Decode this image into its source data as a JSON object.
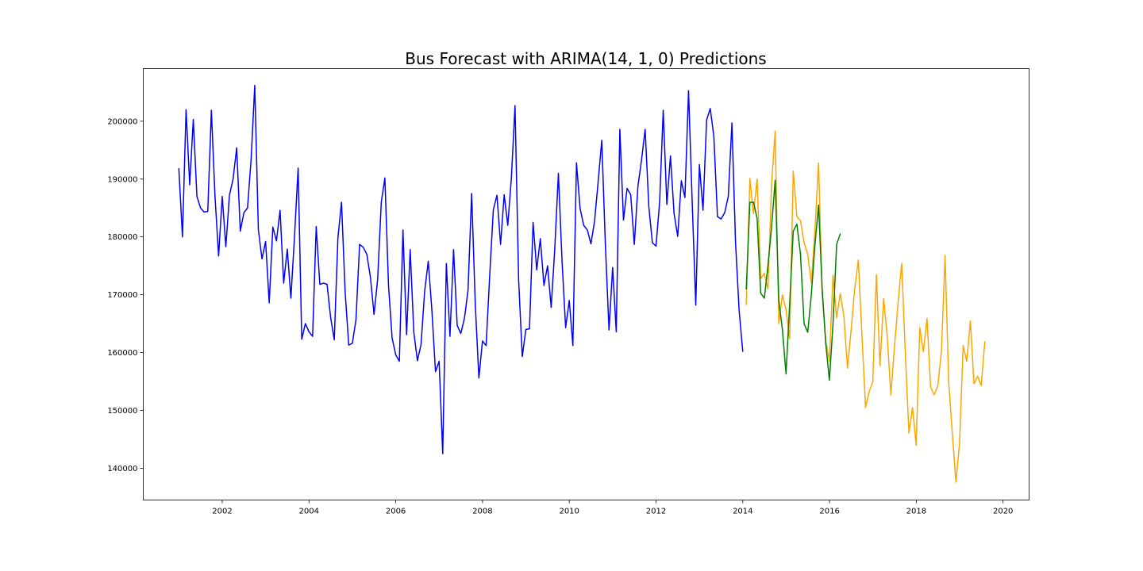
{
  "chart_data": {
    "type": "line",
    "title": "Bus Forecast with ARIMA(14, 1, 0) Predictions",
    "xlabel": "",
    "ylabel": "",
    "xlim": [
      2000.18,
      2020.6
    ],
    "ylim": [
      134500,
      209100
    ],
    "grid": false,
    "legend": "none",
    "x_ticks": [
      2002,
      2004,
      2006,
      2008,
      2010,
      2012,
      2014,
      2016,
      2018,
      2020
    ],
    "x_tick_labels": [
      "2002",
      "2004",
      "2006",
      "2008",
      "2010",
      "2012",
      "2014",
      "2016",
      "2018",
      "2020"
    ],
    "y_ticks": [
      140000,
      150000,
      160000,
      170000,
      180000,
      190000,
      200000
    ],
    "y_tick_labels": [
      "140000",
      "150000",
      "160000",
      "170000",
      "180000",
      "190000",
      "200000"
    ],
    "series": [
      {
        "color": "#0000ff",
        "x_start": 2001.0,
        "x_step": 0.08333,
        "values": [
          191800,
          180000,
          202000,
          189000,
          200300,
          187000,
          185000,
          184300,
          184400,
          201900,
          187000,
          176700,
          187000,
          178300,
          187200,
          190000,
          195400,
          181000,
          184200,
          185000,
          193500,
          206200,
          181200,
          176200,
          179200,
          168600,
          181700,
          179300,
          184600,
          172000,
          177900,
          169400,
          180100,
          191900,
          162300,
          165000,
          163600,
          162800,
          181800,
          171800,
          172000,
          171800,
          166000,
          162200,
          179800,
          186000,
          170500,
          161300,
          161600,
          165700,
          178700,
          178200,
          177000,
          173000,
          166600,
          172700,
          186000,
          190200,
          171600,
          162500,
          159600,
          158500,
          181200,
          163100,
          177800,
          163500,
          158600,
          161400,
          170600,
          175800,
          167300,
          156700,
          158500,
          142500,
          175400,
          162800,
          177800,
          164700,
          163300,
          165900,
          170800,
          187500,
          168400,
          155600,
          162000,
          161200,
          173400,
          184700,
          187200,
          178700,
          187300,
          182000,
          190300,
          202700,
          172500,
          159300,
          164000,
          164100,
          182500,
          174300,
          179700,
          171600,
          175000,
          167800,
          178000,
          191000,
          175900,
          164300,
          169000,
          161200,
          192800,
          184900,
          182000,
          181200,
          178800,
          182700,
          189600,
          196700,
          178500,
          163900,
          174700,
          163600,
          198600,
          182900,
          188400,
          187300,
          178700,
          188800,
          193300,
          198600,
          185300,
          179000,
          178400,
          186000,
          201900,
          185600,
          194000,
          184000,
          180100,
          189700,
          186800,
          205300,
          186200,
          168200,
          192500,
          184600,
          200200,
          202200,
          197400,
          183500,
          183100,
          184200,
          187000,
          199700,
          179000,
          167200,
          160200
        ]
      },
      {
        "color": "#ffa500",
        "x_start": 2014.08,
        "x_step": 0.08333,
        "values": [
          168300,
          190100,
          184000,
          190000,
          172800,
          173700,
          171000,
          189100,
          198300,
          165000,
          170000,
          167400,
          162400,
          191400,
          183500,
          182800,
          179000,
          177000,
          172000,
          181200,
          192800,
          170200,
          162000,
          158500,
          173400,
          166000,
          170200,
          166300,
          157300,
          163800,
          171000,
          176000,
          163000,
          150500,
          153300,
          154900,
          173500,
          157700,
          169300,
          162800,
          152700,
          161000,
          168600,
          175400,
          160000,
          146100,
          150500,
          144000,
          164300,
          160100,
          165900,
          154000,
          152700,
          154300,
          160300,
          176800,
          154900,
          146000,
          137600,
          144300,
          161200,
          158500,
          165500,
          154600,
          155900,
          154300,
          161900
        ]
      },
      {
        "color": "#008000",
        "x_start": 2014.08,
        "x_step": 0.08333,
        "values": [
          171000,
          186000,
          186000,
          183200,
          170300,
          169400,
          175000,
          181700,
          189800,
          169000,
          164000,
          156300,
          168300,
          181000,
          182200,
          177000,
          165000,
          163500,
          170000,
          178600,
          185500,
          171000,
          161500,
          155200,
          165000,
          178700,
          180500
        ]
      }
    ]
  }
}
